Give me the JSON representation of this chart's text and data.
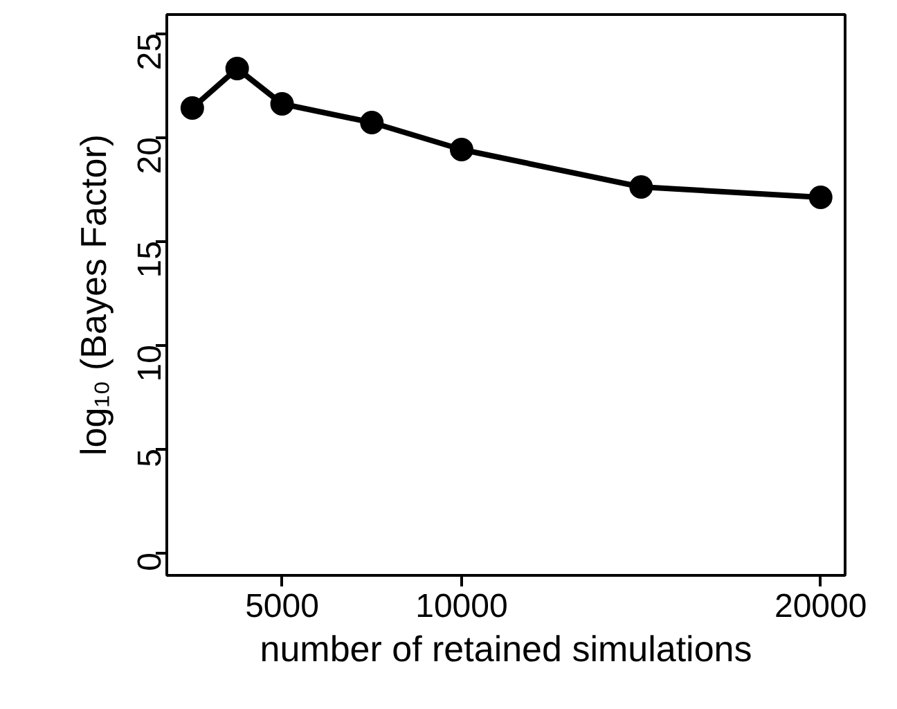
{
  "chart_data": {
    "type": "line",
    "xlabel": "number of retained simulations",
    "ylabel": "log₁₀ (Bayes Factor)",
    "x": [
      2500,
      3750,
      5000,
      7500,
      10000,
      15000,
      20000
    ],
    "series": [
      {
        "color": "#000000",
        "values": [
          21.4,
          23.3,
          21.6,
          20.7,
          19.4,
          17.6,
          17.1
        ]
      }
    ],
    "xlim": [
      1790,
      20680
    ],
    "ylim": [
      -1.1,
      25.9
    ],
    "xticks": [
      5000,
      10000,
      20000
    ],
    "yticks": [
      0,
      5,
      10,
      15,
      20,
      25
    ],
    "grid": false,
    "marker": "circle",
    "line_style": "solid"
  }
}
